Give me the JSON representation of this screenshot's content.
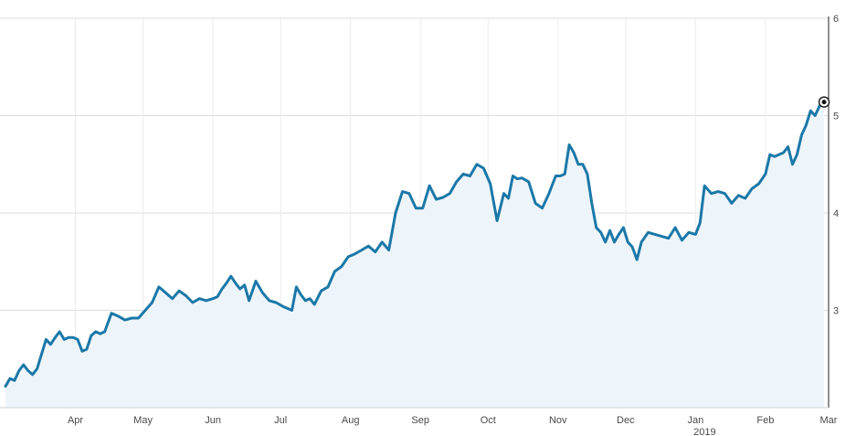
{
  "chart_data": {
    "type": "area",
    "title": "",
    "xlabel": "",
    "ylabel": "",
    "ylim": [
      2.0,
      6.0
    ],
    "y_ticks": [
      "3",
      "4",
      "5",
      "6"
    ],
    "x_ticks": [
      {
        "label": "Apr",
        "x": "2018-04-01"
      },
      {
        "label": "May",
        "x": "2018-05-01"
      },
      {
        "label": "Jun",
        "x": "2018-06-01"
      },
      {
        "label": "Jul",
        "x": "2018-07-01"
      },
      {
        "label": "Aug",
        "x": "2018-08-01"
      },
      {
        "label": "Sep",
        "x": "2018-09-01"
      },
      {
        "label": "Oct",
        "x": "2018-10-01"
      },
      {
        "label": "Nov",
        "x": "2018-11-01"
      },
      {
        "label": "Dec",
        "x": "2018-12-01"
      },
      {
        "label": "Jan",
        "x": "2019-01-01",
        "sublabel": "2019"
      },
      {
        "label": "Feb",
        "x": "2019-02-01"
      },
      {
        "label": "Mar",
        "x": "2019-03-01"
      }
    ],
    "xlim": [
      "2018-03-01",
      "2019-03-01"
    ],
    "line_color": "#1b78a8",
    "fill_color": "#eef5fa",
    "grid": true,
    "series": [
      {
        "x": [
          "2018-03-01",
          "2018-03-03",
          "2018-03-05",
          "2018-03-07",
          "2018-03-09",
          "2018-03-11",
          "2018-03-13",
          "2018-03-15",
          "2018-03-17",
          "2018-03-19",
          "2018-03-21",
          "2018-03-23",
          "2018-03-25",
          "2018-03-27",
          "2018-03-29",
          "2018-03-31",
          "2018-04-02",
          "2018-04-04",
          "2018-04-06",
          "2018-04-08",
          "2018-04-10",
          "2018-04-12",
          "2018-04-14",
          "2018-04-17",
          "2018-04-20",
          "2018-04-23",
          "2018-04-26",
          "2018-04-29",
          "2018-05-02",
          "2018-05-05",
          "2018-05-08",
          "2018-05-11",
          "2018-05-14",
          "2018-05-17",
          "2018-05-20",
          "2018-05-23",
          "2018-05-26",
          "2018-05-29",
          "2018-06-01",
          "2018-06-03",
          "2018-06-05",
          "2018-06-07",
          "2018-06-09",
          "2018-06-11",
          "2018-06-13",
          "2018-06-15",
          "2018-06-17",
          "2018-06-20",
          "2018-06-23",
          "2018-06-26",
          "2018-06-29",
          "2018-07-02",
          "2018-07-04",
          "2018-07-06",
          "2018-07-08",
          "2018-07-10",
          "2018-07-12",
          "2018-07-14",
          "2018-07-16",
          "2018-07-19",
          "2018-07-22",
          "2018-07-25",
          "2018-07-28",
          "2018-07-31",
          "2018-08-03",
          "2018-08-06",
          "2018-08-09",
          "2018-08-12",
          "2018-08-15",
          "2018-08-18",
          "2018-08-21",
          "2018-08-24",
          "2018-08-27",
          "2018-08-30",
          "2018-09-02",
          "2018-09-05",
          "2018-09-08",
          "2018-09-11",
          "2018-09-14",
          "2018-09-17",
          "2018-09-20",
          "2018-09-23",
          "2018-09-26",
          "2018-09-29",
          "2018-10-02",
          "2018-10-05",
          "2018-10-08",
          "2018-10-10",
          "2018-10-12",
          "2018-10-14",
          "2018-10-16",
          "2018-10-19",
          "2018-10-22",
          "2018-10-25",
          "2018-10-28",
          "2018-10-31",
          "2018-11-02",
          "2018-11-04",
          "2018-11-06",
          "2018-11-08",
          "2018-11-10",
          "2018-11-12",
          "2018-11-14",
          "2018-11-16",
          "2018-11-18",
          "2018-11-20",
          "2018-11-22",
          "2018-11-24",
          "2018-11-26",
          "2018-11-28",
          "2018-11-30",
          "2018-12-02",
          "2018-12-04",
          "2018-12-06",
          "2018-12-08",
          "2018-12-11",
          "2018-12-14",
          "2018-12-17",
          "2018-12-20",
          "2018-12-23",
          "2018-12-26",
          "2018-12-29",
          "2019-01-01",
          "2019-01-03",
          "2019-01-05",
          "2019-01-08",
          "2019-01-11",
          "2019-01-14",
          "2019-01-17",
          "2019-01-20",
          "2019-01-23",
          "2019-01-26",
          "2019-01-29",
          "2019-02-01",
          "2019-02-03",
          "2019-02-05",
          "2019-02-07",
          "2019-02-09",
          "2019-02-11",
          "2019-02-13",
          "2019-02-15",
          "2019-02-17",
          "2019-02-19",
          "2019-02-21",
          "2019-02-23",
          "2019-02-25",
          "2019-02-27"
        ],
        "values": [
          2.22,
          2.3,
          2.28,
          2.38,
          2.44,
          2.38,
          2.34,
          2.4,
          2.55,
          2.7,
          2.65,
          2.72,
          2.78,
          2.7,
          2.72,
          2.72,
          2.7,
          2.58,
          2.6,
          2.74,
          2.78,
          2.76,
          2.78,
          2.97,
          2.94,
          2.9,
          2.92,
          2.92,
          3.0,
          3.08,
          3.24,
          3.18,
          3.12,
          3.2,
          3.15,
          3.08,
          3.12,
          3.1,
          3.12,
          3.14,
          3.22,
          3.28,
          3.35,
          3.28,
          3.22,
          3.26,
          3.1,
          3.3,
          3.18,
          3.1,
          3.08,
          3.04,
          3.02,
          3.0,
          3.24,
          3.16,
          3.1,
          3.12,
          3.06,
          3.2,
          3.24,
          3.4,
          3.45,
          3.55,
          3.58,
          3.62,
          3.66,
          3.6,
          3.7,
          3.62,
          4.0,
          4.22,
          4.2,
          4.05,
          4.05,
          4.28,
          4.14,
          4.16,
          4.2,
          4.32,
          4.4,
          4.38,
          4.5,
          4.46,
          4.3,
          3.92,
          4.2,
          4.15,
          4.38,
          4.35,
          4.36,
          4.32,
          4.1,
          4.05,
          4.2,
          4.38,
          4.38,
          4.4,
          4.7,
          4.62,
          4.5,
          4.5,
          4.4,
          4.1,
          3.85,
          3.8,
          3.7,
          3.82,
          3.7,
          3.78,
          3.85,
          3.7,
          3.65,
          3.52,
          3.7,
          3.8,
          3.78,
          3.76,
          3.74,
          3.85,
          3.72,
          3.8,
          3.78,
          3.9,
          4.28,
          4.2,
          4.22,
          4.2,
          4.1,
          4.18,
          4.15,
          4.25,
          4.3,
          4.4,
          4.6,
          4.58,
          4.6,
          4.62,
          4.68,
          4.5,
          4.6,
          4.8,
          4.9,
          5.05,
          5.0,
          5.1,
          5.14
        ]
      }
    ]
  }
}
